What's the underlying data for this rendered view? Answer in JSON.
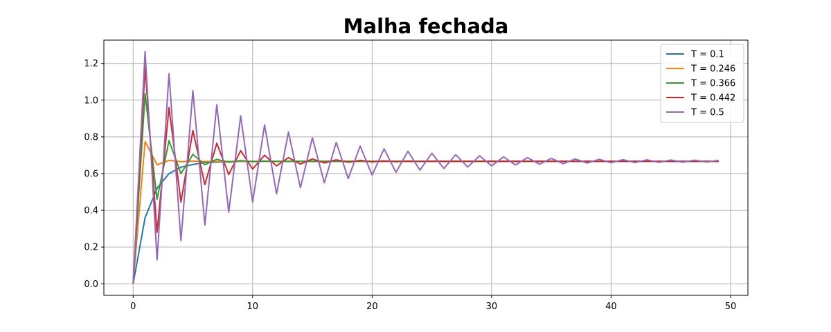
{
  "chart_data": {
    "type": "line",
    "title": "Malha fechada",
    "xlabel": "",
    "ylabel": "",
    "xlim": [
      -2.45,
      51.45
    ],
    "ylim": [
      -0.063,
      1.327
    ],
    "xticks": [
      0,
      10,
      20,
      30,
      40,
      50
    ],
    "yticks": [
      0.0,
      0.2,
      0.4,
      0.6,
      0.8,
      1.0,
      1.2
    ],
    "grid": true,
    "legend_position": "top-right",
    "x": [
      0,
      1,
      2,
      3,
      4,
      5,
      6,
      7,
      8,
      9,
      10,
      11,
      12,
      13,
      14,
      15,
      16,
      17,
      18,
      19,
      20,
      21,
      22,
      23,
      24,
      25,
      26,
      27,
      28,
      29,
      30,
      31,
      32,
      33,
      34,
      35,
      36,
      37,
      38,
      39,
      40,
      41,
      42,
      43,
      44,
      45,
      46,
      47,
      48,
      49
    ],
    "series": [
      {
        "name": "T = 0.1",
        "color": "#1f77b4",
        "values": [
          0,
          0.36,
          0.52,
          0.6,
          0.635,
          0.65,
          0.66,
          0.663,
          0.665,
          0.666,
          0.6665,
          0.667,
          0.667,
          0.667,
          0.667,
          0.667,
          0.667,
          0.667,
          0.667,
          0.667,
          0.667,
          0.667,
          0.667,
          0.667,
          0.667,
          0.667,
          0.667,
          0.667,
          0.667,
          0.667,
          0.667,
          0.667,
          0.667,
          0.667,
          0.667,
          0.667,
          0.667,
          0.667,
          0.667,
          0.667,
          0.667,
          0.667,
          0.667,
          0.667,
          0.667,
          0.667,
          0.667,
          0.667,
          0.667,
          0.667
        ]
      },
      {
        "name": "T = 0.246",
        "color": "#ff7f0e",
        "values": [
          0,
          0.775,
          0.648,
          0.672,
          0.665,
          0.668,
          0.666,
          0.667,
          0.667,
          0.667,
          0.667,
          0.667,
          0.667,
          0.667,
          0.667,
          0.667,
          0.667,
          0.667,
          0.667,
          0.667,
          0.667,
          0.667,
          0.667,
          0.667,
          0.667,
          0.667,
          0.667,
          0.667,
          0.667,
          0.667,
          0.667,
          0.667,
          0.667,
          0.667,
          0.667,
          0.667,
          0.667,
          0.667,
          0.667,
          0.667,
          0.667,
          0.667,
          0.667,
          0.667,
          0.667,
          0.667,
          0.667,
          0.667,
          0.667,
          0.667
        ]
      },
      {
        "name": "T = 0.366",
        "color": "#2ca02c",
        "values": [
          0,
          1.035,
          0.46,
          0.78,
          0.6,
          0.705,
          0.648,
          0.678,
          0.662,
          0.671,
          0.665,
          0.668,
          0.666,
          0.667,
          0.667,
          0.667,
          0.667,
          0.667,
          0.667,
          0.667,
          0.667,
          0.667,
          0.667,
          0.667,
          0.667,
          0.667,
          0.667,
          0.667,
          0.667,
          0.667,
          0.667,
          0.667,
          0.667,
          0.667,
          0.667,
          0.667,
          0.667,
          0.667,
          0.667,
          0.667,
          0.667,
          0.667,
          0.667,
          0.667,
          0.667,
          0.667,
          0.667,
          0.667,
          0.667,
          0.667
        ]
      },
      {
        "name": "T = 0.442",
        "color": "#d62728",
        "values": [
          0,
          1.18,
          0.28,
          0.96,
          0.445,
          0.835,
          0.54,
          0.765,
          0.595,
          0.725,
          0.625,
          0.7,
          0.642,
          0.687,
          0.652,
          0.68,
          0.658,
          0.675,
          0.662,
          0.672,
          0.664,
          0.669,
          0.665,
          0.668,
          0.666,
          0.6675,
          0.6665,
          0.667,
          0.667,
          0.667,
          0.667,
          0.667,
          0.667,
          0.667,
          0.667,
          0.667,
          0.667,
          0.667,
          0.667,
          0.667,
          0.667,
          0.667,
          0.667,
          0.667,
          0.667,
          0.667,
          0.667,
          0.667,
          0.667,
          0.667
        ]
      },
      {
        "name": "T = 0.5",
        "color": "#9467bd",
        "values": [
          0,
          1.265,
          0.13,
          1.145,
          0.235,
          1.052,
          0.32,
          0.975,
          0.39,
          0.915,
          0.445,
          0.865,
          0.49,
          0.826,
          0.523,
          0.795,
          0.55,
          0.77,
          0.573,
          0.75,
          0.592,
          0.735,
          0.607,
          0.722,
          0.619,
          0.711,
          0.628,
          0.703,
          0.636,
          0.697,
          0.642,
          0.691,
          0.647,
          0.687,
          0.651,
          0.683,
          0.654,
          0.68,
          0.657,
          0.678,
          0.659,
          0.676,
          0.66,
          0.675,
          0.661,
          0.674,
          0.662,
          0.673,
          0.663,
          0.672
        ]
      }
    ]
  }
}
